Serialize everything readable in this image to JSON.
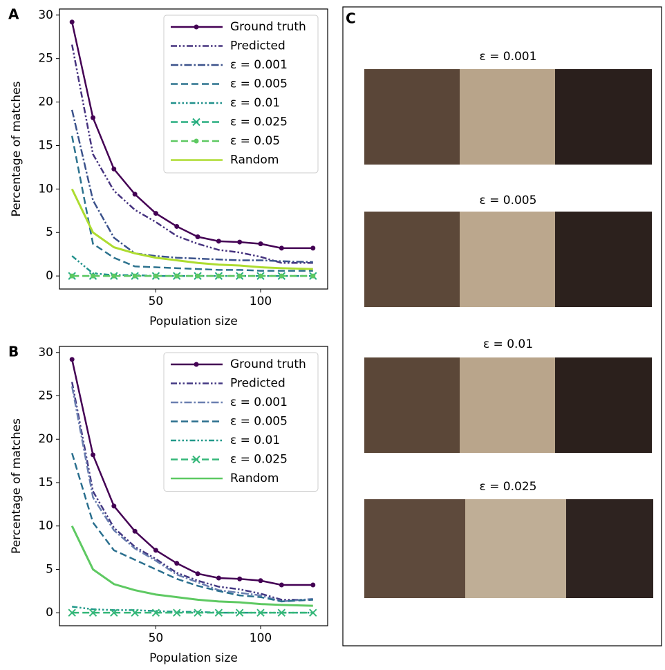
{
  "chart_data": [
    {
      "type": "line",
      "label": "A",
      "xlabel": "Population size",
      "ylabel": "Percentage of matches",
      "x": [
        10,
        20,
        30,
        40,
        50,
        60,
        70,
        80,
        90,
        100,
        110,
        125
      ],
      "xlim": [
        4,
        132
      ],
      "ylim": [
        -1.5,
        30.7
      ],
      "xticks": [
        50,
        100
      ],
      "yticks": [
        0,
        5,
        10,
        15,
        20,
        25,
        30
      ],
      "legend": "upper right",
      "series": [
        {
          "name": "Ground truth",
          "color": "#440154",
          "linestyle": "solid",
          "marker": "o",
          "values": [
            29.2,
            18.2,
            12.3,
            9.4,
            7.2,
            5.7,
            4.5,
            4.0,
            3.9,
            3.7,
            3.2,
            3.2
          ]
        },
        {
          "name": "Predicted",
          "color": "#46337f",
          "linestyle": "dashdotdot",
          "values": [
            26.6,
            14.0,
            9.8,
            7.6,
            6.2,
            4.6,
            3.7,
            3.0,
            2.7,
            2.2,
            1.5,
            1.5
          ]
        },
        {
          "name": "ε = 0.001",
          "color": "#3b528b",
          "linestyle": "dashdot",
          "values": [
            19.1,
            8.7,
            4.4,
            2.6,
            2.3,
            2.1,
            2.0,
            1.9,
            1.8,
            1.8,
            1.7,
            1.6
          ]
        },
        {
          "name": "ε = 0.005",
          "color": "#2c728e",
          "linestyle": "dashed",
          "values": [
            16.1,
            3.7,
            2.1,
            1.1,
            1.0,
            0.9,
            0.8,
            0.7,
            0.7,
            0.6,
            0.6,
            0.6
          ]
        },
        {
          "name": "ε = 0.01",
          "color": "#21918c",
          "linestyle": "dashdotdotdot",
          "values": [
            2.3,
            0.3,
            0.1,
            0.1,
            0,
            0,
            0,
            0,
            0,
            0,
            0,
            0
          ]
        },
        {
          "name": "ε = 0.025",
          "color": "#28ae80",
          "linestyle": "dashed",
          "marker": "x",
          "values": [
            0,
            0,
            0,
            0,
            0,
            0,
            0,
            0,
            0,
            0,
            0,
            0
          ]
        },
        {
          "name": "ε = 0.05",
          "color": "#5ec962",
          "linestyle": "dashed",
          "marker": "o",
          "values": [
            0,
            0,
            0,
            0,
            0,
            0,
            0,
            0,
            0,
            0,
            0,
            0
          ]
        },
        {
          "name": "Random",
          "color": "#addc30",
          "linestyle": "solid",
          "values": [
            10.0,
            5.0,
            3.3,
            2.6,
            2.1,
            1.8,
            1.5,
            1.3,
            1.2,
            1.0,
            0.9,
            0.8
          ]
        }
      ]
    },
    {
      "type": "line",
      "label": "B",
      "xlabel": "Population size",
      "ylabel": "Percentage of matches",
      "x": [
        10,
        20,
        30,
        40,
        50,
        60,
        70,
        80,
        90,
        100,
        110,
        125
      ],
      "xlim": [
        4,
        132
      ],
      "ylim": [
        -1.5,
        30.7
      ],
      "xticks": [
        50,
        100
      ],
      "yticks": [
        0,
        5,
        10,
        15,
        20,
        25,
        30
      ],
      "legend": "upper right",
      "series": [
        {
          "name": "Ground truth",
          "color": "#440154",
          "linestyle": "solid",
          "marker": "o",
          "values": [
            29.2,
            18.2,
            12.3,
            9.4,
            7.2,
            5.7,
            4.5,
            4.0,
            3.9,
            3.7,
            3.2,
            3.2
          ]
        },
        {
          "name": "Predicted",
          "color": "#443983",
          "linestyle": "dashdotdot",
          "values": [
            26.6,
            14.0,
            9.8,
            7.6,
            6.2,
            4.6,
            3.7,
            3.0,
            2.7,
            2.2,
            1.5,
            1.5
          ]
        },
        {
          "name": "ε = 0.001",
          "color": "#6a7fb0",
          "linestyle": "dashdot",
          "values": [
            26.1,
            13.3,
            9.5,
            7.4,
            6.0,
            4.4,
            3.5,
            2.6,
            2.3,
            2.0,
            1.3,
            1.6
          ]
        },
        {
          "name": "ε = 0.005",
          "color": "#2a6f8e",
          "linestyle": "dashed",
          "values": [
            18.4,
            10.4,
            7.2,
            6.1,
            5.0,
            3.9,
            3.1,
            2.5,
            2.0,
            1.8,
            1.3,
            1.5
          ]
        },
        {
          "name": "ε = 0.01",
          "color": "#22998a",
          "linestyle": "dashdotdotdot",
          "values": [
            0.7,
            0.4,
            0.3,
            0.3,
            0.2,
            0.1,
            0.1,
            0,
            0,
            0,
            0,
            0
          ]
        },
        {
          "name": "ε = 0.025",
          "color": "#35b779",
          "linestyle": "dashed",
          "marker": "x",
          "values": [
            0,
            0,
            0,
            0,
            0,
            0,
            0,
            0,
            0,
            0,
            0,
            0
          ]
        },
        {
          "name": "Random",
          "color": "#5ec962",
          "linestyle": "solid",
          "values": [
            10.0,
            5.0,
            3.3,
            2.6,
            2.1,
            1.8,
            1.5,
            1.3,
            1.2,
            1.0,
            0.9,
            0.8
          ]
        }
      ]
    }
  ],
  "panel_c": {
    "label": "C",
    "captions": [
      "ε = 0.001",
      "ε = 0.005",
      "ε = 0.01",
      "ε = 0.025"
    ]
  }
}
